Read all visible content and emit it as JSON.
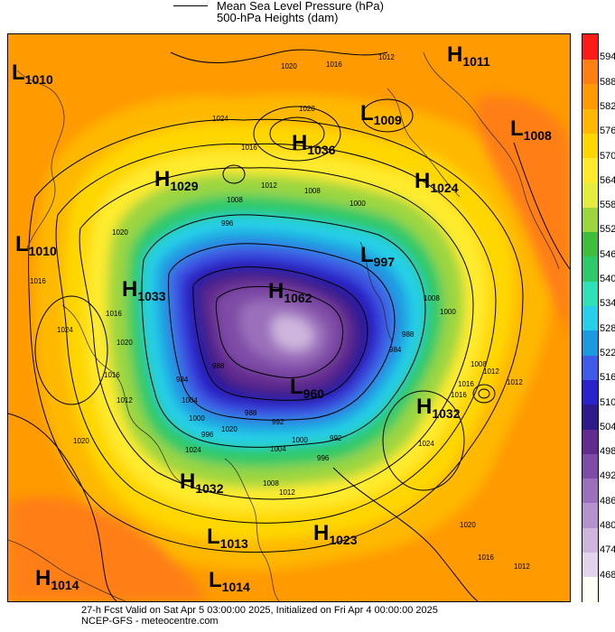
{
  "legend": {
    "line1": "Mean Sea Level Pressure (hPa)",
    "line2": "500-hPa Heights (dam)"
  },
  "colors": {
    "scale": [
      "#fffff8",
      "#e2d4ea",
      "#cdb5dd",
      "#b493cc",
      "#9b6fbb",
      "#7e4ca6",
      "#622b8e",
      "#2f1a8c",
      "#2a23c9",
      "#3f5ce6",
      "#1a9be0",
      "#27d0e8",
      "#2fe0b8",
      "#2ec969",
      "#3fbe3e",
      "#9bd63f",
      "#e5ec3e",
      "#ffeb2e",
      "#ffd700",
      "#ffb800",
      "#ff9a00",
      "#ff7f12",
      "#ff1a1a"
    ]
  },
  "scale_labels": [
    "468",
    "474",
    "480",
    "486",
    "492",
    "498",
    "504",
    "510",
    "516",
    "522",
    "528",
    "534",
    "540",
    "546",
    "552",
    "558",
    "564",
    "570",
    "576",
    "582",
    "588",
    "594"
  ],
  "pressure_centers": [
    {
      "type": "L",
      "value": "1010"
    },
    {
      "type": "H",
      "value": "1011"
    },
    {
      "type": "L",
      "value": "1009"
    },
    {
      "type": "L",
      "value": "1008"
    },
    {
      "type": "H",
      "value": "1036"
    },
    {
      "type": "H",
      "value": "1029"
    },
    {
      "type": "H",
      "value": "1024"
    },
    {
      "type": "L",
      "value": "1010"
    },
    {
      "type": "L",
      "value": "997"
    },
    {
      "type": "H",
      "value": "1033"
    },
    {
      "type": "H",
      "value": "1062"
    },
    {
      "type": "L",
      "value": "960"
    },
    {
      "type": "H",
      "value": "1032"
    },
    {
      "type": "H",
      "value": "1032"
    },
    {
      "type": "L",
      "value": "1013"
    },
    {
      "type": "H",
      "value": "1023"
    },
    {
      "type": "H",
      "value": "1014"
    },
    {
      "type": "L",
      "value": "1014"
    }
  ],
  "isobar_labels": [
    "1020",
    "1016",
    "1012",
    "1028",
    "1024",
    "1016",
    "1008",
    "1000",
    "996",
    "1020",
    "1016",
    "1016",
    "1024",
    "1020",
    "1016",
    "1012",
    "1008",
    "1000",
    "988",
    "984",
    "988",
    "984",
    "1012",
    "1008",
    "1004",
    "1000",
    "996",
    "992",
    "988",
    "1016",
    "1012",
    "1008",
    "1016",
    "1012",
    "1020",
    "1024",
    "1020",
    "1012",
    "1008",
    "1004",
    "1000",
    "996",
    "992",
    "1020",
    "1024",
    "1016",
    "1012"
  ],
  "footer": {
    "line1": "27-h Fcst Valid on Sat Apr  5 03:00:00 2025, Initialized on Fri Apr  4 00:00:00 2025",
    "line2": "NCEP-GFS  - meteocentre.com"
  }
}
